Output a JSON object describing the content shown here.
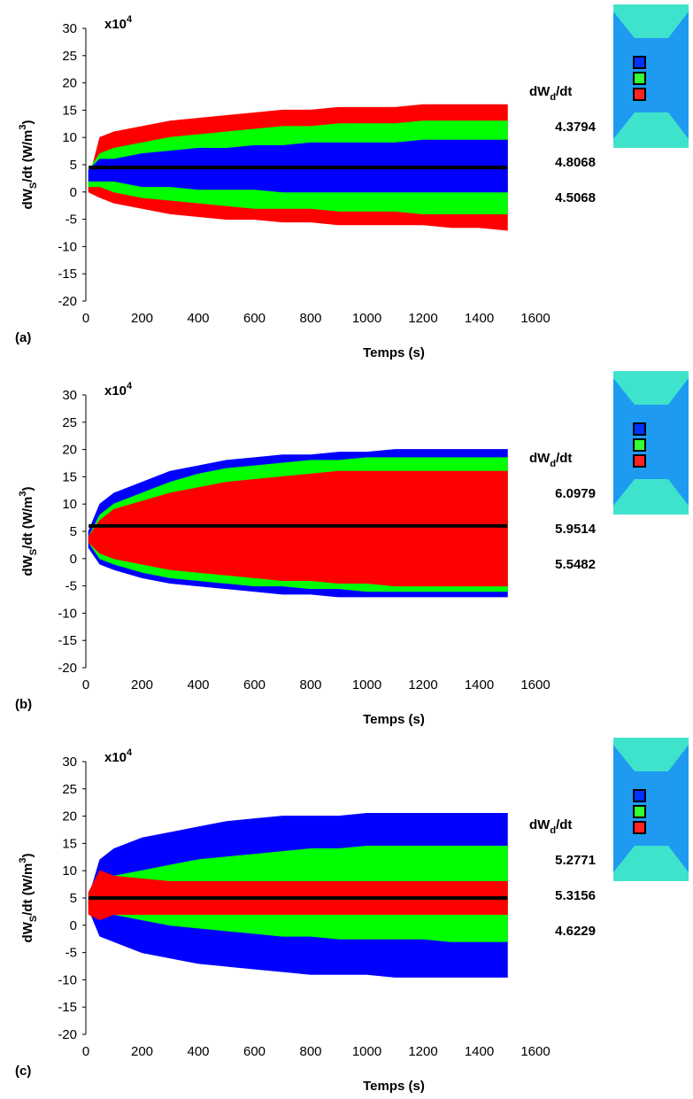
{
  "chart_data": [
    {
      "type": "band",
      "panel": "(a)",
      "multiplier": [
        {
          "text": "x10"
        },
        {
          "sup": "4"
        }
      ],
      "ylabel": [
        {
          "text": "dW"
        },
        {
          "sub": "S"
        },
        {
          "text": "/dt (W/m"
        },
        {
          "sup": "3"
        },
        {
          "text": ")"
        }
      ],
      "xlabel": "Temps (s)",
      "legend_title": [
        {
          "text": "dW"
        },
        {
          "sub": "d"
        },
        {
          "text": "/dt"
        }
      ],
      "xlim": [
        0,
        1600
      ],
      "xticks": [
        0,
        200,
        400,
        600,
        800,
        1000,
        1200,
        1400,
        1600
      ],
      "ylim": [
        -20,
        30
      ],
      "yticks": [
        -20,
        -15,
        -10,
        -5,
        0,
        5,
        10,
        15,
        20,
        25,
        30
      ],
      "x": [
        10,
        50,
        100,
        200,
        300,
        400,
        500,
        600,
        700,
        800,
        900,
        1000,
        1100,
        1200,
        1300,
        1400,
        1500
      ],
      "mean_line": 4.5,
      "series": [
        {
          "color": "#ff0000",
          "rate": 4.5068,
          "upper": [
            2,
            10,
            11,
            12,
            13,
            13.5,
            14,
            14.5,
            15,
            15,
            15.5,
            15.5,
            15.5,
            16,
            16,
            16,
            16
          ],
          "lower": [
            0,
            -1,
            -2,
            -3,
            -4,
            -4.5,
            -5,
            -5,
            -5.5,
            -5.5,
            -6,
            -6,
            -6,
            -6,
            -6.5,
            -6.5,
            -7
          ]
        },
        {
          "color": "#00ff00",
          "rate": 4.8068,
          "upper": [
            4,
            7,
            8,
            9,
            10,
            10.5,
            11,
            11.5,
            12,
            12,
            12.5,
            12.5,
            12.5,
            13,
            13,
            13,
            13
          ],
          "lower": [
            1,
            1,
            0,
            -1,
            -1.5,
            -2,
            -2.5,
            -3,
            -3,
            -3,
            -3.5,
            -3.5,
            -3.5,
            -4,
            -4,
            -4,
            -4
          ]
        },
        {
          "color": "#0000ff",
          "rate": 4.3794,
          "upper": [
            4,
            6,
            6,
            7,
            7.5,
            8,
            8,
            8.5,
            8.5,
            9,
            9,
            9,
            9,
            9.5,
            9.5,
            9.5,
            9.5
          ],
          "lower": [
            2,
            2,
            2,
            1,
            1,
            0.5,
            0.5,
            0.5,
            0,
            0,
            0,
            0,
            0,
            0,
            0,
            0,
            0
          ]
        }
      ],
      "legend_order": [
        2,
        1,
        0
      ]
    },
    {
      "type": "band",
      "panel": "(b)",
      "multiplier": [
        {
          "text": "x10"
        },
        {
          "sup": "4"
        }
      ],
      "ylabel": [
        {
          "text": "dW"
        },
        {
          "sub": "S"
        },
        {
          "text": "/dt (W/m"
        },
        {
          "sup": "3"
        },
        {
          "text": ")"
        }
      ],
      "xlabel": "Temps (s)",
      "legend_title": [
        {
          "text": "dW"
        },
        {
          "sub": "d"
        },
        {
          "text": "/dt"
        }
      ],
      "xlim": [
        0,
        1600
      ],
      "xticks": [
        0,
        200,
        400,
        600,
        800,
        1000,
        1200,
        1400,
        1600
      ],
      "ylim": [
        -20,
        30
      ],
      "yticks": [
        -20,
        -15,
        -10,
        -5,
        0,
        5,
        10,
        15,
        20,
        25,
        30
      ],
      "x": [
        10,
        50,
        100,
        200,
        300,
        400,
        500,
        600,
        700,
        800,
        900,
        1000,
        1100,
        1200,
        1300,
        1400,
        1500
      ],
      "mean_line": 6,
      "series": [
        {
          "color": "#0000ff",
          "rate": 6.0979,
          "upper": [
            5,
            10,
            12,
            14,
            16,
            17,
            18,
            18.5,
            19,
            19,
            19.5,
            19.5,
            20,
            20,
            20,
            20,
            20
          ],
          "lower": [
            2,
            -1,
            -2,
            -3.5,
            -4.5,
            -5,
            -5.5,
            -6,
            -6.5,
            -6.5,
            -7,
            -7,
            -7,
            -7,
            -7,
            -7,
            -7
          ]
        },
        {
          "color": "#00ff00",
          "rate": 5.9514,
          "upper": [
            4,
            8,
            10,
            12,
            14,
            15.5,
            16.5,
            17,
            17.5,
            18,
            18,
            18.5,
            18.5,
            18.5,
            18.5,
            18.5,
            18.5
          ],
          "lower": [
            3,
            0,
            -1,
            -2.5,
            -3.5,
            -4,
            -4.5,
            -5,
            -5,
            -5.5,
            -5.5,
            -6,
            -6,
            -6,
            -6,
            -6,
            -6
          ]
        },
        {
          "color": "#ff0000",
          "rate": 5.5482,
          "upper": [
            4,
            7,
            9,
            10.5,
            12,
            13,
            14,
            14.5,
            15,
            15.5,
            16,
            16,
            16,
            16,
            16,
            16,
            16
          ],
          "lower": [
            3,
            1,
            0,
            -1,
            -2,
            -2.5,
            -3,
            -3.5,
            -4,
            -4,
            -4.5,
            -4.5,
            -5,
            -5,
            -5,
            -5,
            -5
          ]
        }
      ],
      "legend_order": [
        0,
        1,
        2
      ]
    },
    {
      "type": "band",
      "panel": "(c)",
      "multiplier": [
        {
          "text": "x10"
        },
        {
          "sup": "4"
        }
      ],
      "ylabel": [
        {
          "text": "dW"
        },
        {
          "sub": "S"
        },
        {
          "text": "/dt (W/m"
        },
        {
          "sup": "3"
        },
        {
          "text": ")"
        }
      ],
      "xlabel": "Temps (s)",
      "legend_title": [
        {
          "text": "dW"
        },
        {
          "sub": "d"
        },
        {
          "text": "/dt"
        }
      ],
      "xlim": [
        0,
        1600
      ],
      "xticks": [
        0,
        200,
        400,
        600,
        800,
        1000,
        1200,
        1400,
        1600
      ],
      "ylim": [
        -20,
        30
      ],
      "yticks": [
        -20,
        -15,
        -10,
        -5,
        0,
        5,
        10,
        15,
        20,
        25,
        30
      ],
      "x": [
        10,
        50,
        100,
        200,
        300,
        400,
        500,
        600,
        700,
        800,
        900,
        1000,
        1100,
        1200,
        1300,
        1400,
        1500
      ],
      "mean_line": 5,
      "series": [
        {
          "color": "#0000ff",
          "rate": 5.2771,
          "upper": [
            5,
            12,
            14,
            16,
            17,
            18,
            19,
            19.5,
            20,
            20,
            20,
            20.5,
            20.5,
            20.5,
            20.5,
            20.5,
            20.5
          ],
          "lower": [
            3,
            -2,
            -3,
            -5,
            -6,
            -7,
            -7.5,
            -8,
            -8.5,
            -9,
            -9,
            -9,
            -9.5,
            -9.5,
            -9.5,
            -9.5,
            -9.5
          ]
        },
        {
          "color": "#00ff00",
          "rate": 5.3156,
          "upper": [
            4,
            8,
            9,
            10,
            11,
            12,
            12.5,
            13,
            13.5,
            14,
            14,
            14.5,
            14.5,
            14.5,
            14.5,
            14.5,
            14.5
          ],
          "lower": [
            3,
            3,
            2,
            1,
            0,
            -0.5,
            -1,
            -1.5,
            -2,
            -2,
            -2.5,
            -2.5,
            -2.5,
            -2.5,
            -3,
            -3,
            -3
          ]
        },
        {
          "color": "#ff0000",
          "rate": 4.6229,
          "upper": [
            6,
            10,
            9,
            8.5,
            8,
            8,
            8,
            8,
            8,
            8,
            8,
            8,
            8,
            8,
            8,
            8,
            8
          ],
          "lower": [
            2,
            1,
            2,
            2,
            2,
            2,
            2,
            2,
            2,
            2,
            2,
            2,
            2,
            2,
            2,
            2,
            2
          ]
        }
      ],
      "legend_order": [
        0,
        1,
        2
      ]
    }
  ]
}
